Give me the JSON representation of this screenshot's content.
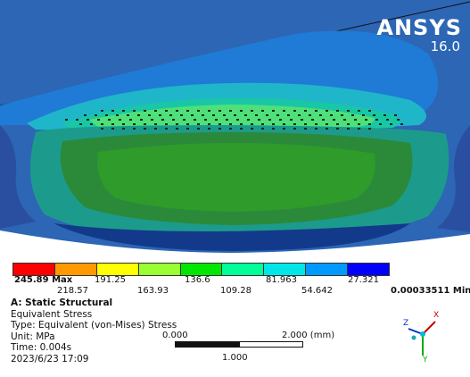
{
  "logo": {
    "brand": "ANSYS",
    "version": "16.0"
  },
  "legend": {
    "max_label": "245.89 Max",
    "min_label": "0.00033511 Min",
    "top_values": [
      "191.25",
      "136.6",
      "81.963",
      "27.321"
    ],
    "bottom_values": [
      "218.57",
      "163.93",
      "109.28",
      "54.642"
    ],
    "colors": [
      "#ff0000",
      "#ff9900",
      "#ffff00",
      "#99ff33",
      "#00e600",
      "#00ff99",
      "#00e6e6",
      "#0099ff",
      "#0000ff"
    ]
  },
  "info": {
    "analysis": "A: Static Structural",
    "result": "Equivalent Stress",
    "type": "Type: Equivalent (von-Mises) Stress",
    "unit": "Unit: MPa",
    "time": "Time: 0.004s",
    "date": "2023/6/23 17:09"
  },
  "scale": {
    "left": "0.000",
    "right": "2.000 (mm)",
    "mid": "1.000"
  },
  "triad": {
    "x": "X",
    "y": "Y",
    "z": "Z"
  }
}
